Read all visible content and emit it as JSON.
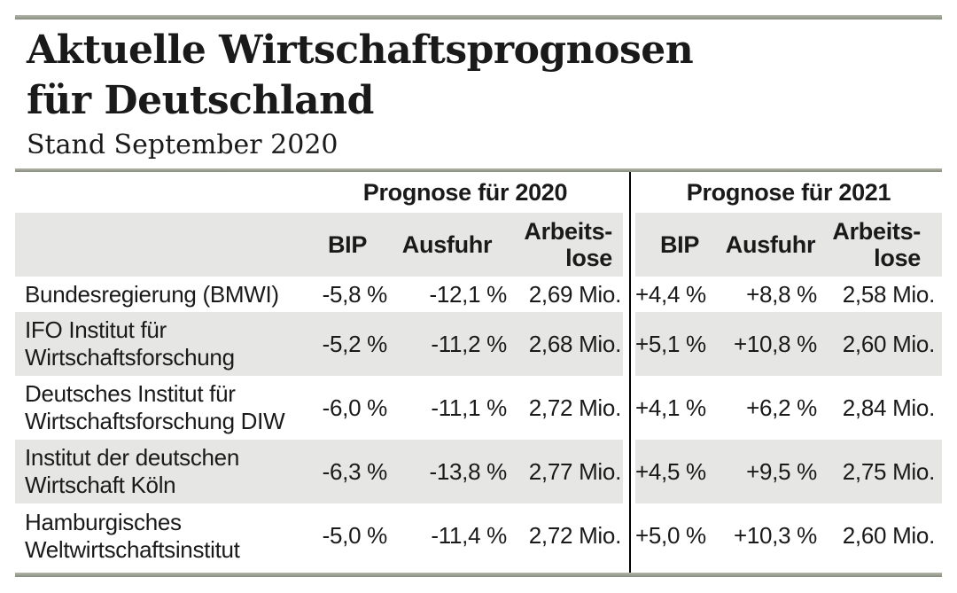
{
  "header": {
    "title_line1": "Aktuelle Wirtschaftsprognosen",
    "title_line2": "für Deutschland",
    "subtitle": "Stand September 2020"
  },
  "table": {
    "group_headers": [
      "Prognose für 2020",
      "Prognose für 2021"
    ],
    "column_headers": {
      "bip": "BIP",
      "ausfuhr": "Ausfuhr",
      "arbeitslose_line1": "Arbeits-",
      "arbeitslose_line2": "lose"
    },
    "rows": [
      {
        "label": "Bundesregierung (BMWI)",
        "p2020": {
          "bip": "-5,8 %",
          "ausfuhr": "-12,1 %",
          "arbeitslose": "2,69 Mio."
        },
        "p2021": {
          "bip": "+4,4 %",
          "ausfuhr": "+8,8 %",
          "arbeitslose": "2,58 Mio."
        }
      },
      {
        "label": "IFO Institut für\nWirtschaftsforschung",
        "p2020": {
          "bip": "-5,2 %",
          "ausfuhr": "-11,2 %",
          "arbeitslose": "2,68 Mio."
        },
        "p2021": {
          "bip": "+5,1 %",
          "ausfuhr": "+10,8 %",
          "arbeitslose": "2,60 Mio."
        }
      },
      {
        "label": "Deutsches Institut für\nWirtschaftsforschung DIW",
        "p2020": {
          "bip": "-6,0 %",
          "ausfuhr": "-11,1 %",
          "arbeitslose": "2,72 Mio."
        },
        "p2021": {
          "bip": "+4,1 %",
          "ausfuhr": "+6,2 %",
          "arbeitslose": "2,84 Mio."
        }
      },
      {
        "label": "Institut der deutschen\nWirtschaft Köln",
        "p2020": {
          "bip": "-6,3 %",
          "ausfuhr": "-13,8 %",
          "arbeitslose": "2,77 Mio."
        },
        "p2021": {
          "bip": "+4,5 %",
          "ausfuhr": "+9,5 %",
          "arbeitslose": "2,75 Mio."
        }
      },
      {
        "label": "Hamburgisches\nWeltwirtschaftsinstitut",
        "p2020": {
          "bip": "-5,0 %",
          "ausfuhr": "-11,4 %",
          "arbeitslose": "2,72 Mio."
        },
        "p2021": {
          "bip": "+5,0 %",
          "ausfuhr": "+10,3 %",
          "arbeitslose": "2,60 Mio."
        }
      }
    ]
  },
  "colors": {
    "rule": "#969c8e",
    "row_stripe": "#e6e6e4",
    "divider": "#000000",
    "text": "#1a1a1a"
  },
  "chart_data": {
    "type": "table",
    "title": "Aktuelle Wirtschaftsprognosen für Deutschland",
    "subtitle": "Stand September 2020",
    "column_groups": [
      "Prognose für 2020",
      "Prognose für 2021"
    ],
    "columns": [
      "BIP",
      "Ausfuhr",
      "Arbeitslose"
    ],
    "units": {
      "bip": "%",
      "ausfuhr": "%",
      "arbeitslose": "Mio."
    },
    "rows": [
      {
        "institution": "Bundesregierung (BMWI)",
        "prognose_2020": {
          "bip_pct": -5.8,
          "ausfuhr_pct": -12.1,
          "arbeitslose_mio": 2.69
        },
        "prognose_2021": {
          "bip_pct": 4.4,
          "ausfuhr_pct": 8.8,
          "arbeitslose_mio": 2.58
        }
      },
      {
        "institution": "IFO Institut für Wirtschaftsforschung",
        "prognose_2020": {
          "bip_pct": -5.2,
          "ausfuhr_pct": -11.2,
          "arbeitslose_mio": 2.68
        },
        "prognose_2021": {
          "bip_pct": 5.1,
          "ausfuhr_pct": 10.8,
          "arbeitslose_mio": 2.6
        }
      },
      {
        "institution": "Deutsches Institut für Wirtschaftsforschung DIW",
        "prognose_2020": {
          "bip_pct": -6.0,
          "ausfuhr_pct": -11.1,
          "arbeitslose_mio": 2.72
        },
        "prognose_2021": {
          "bip_pct": 4.1,
          "ausfuhr_pct": 6.2,
          "arbeitslose_mio": 2.84
        }
      },
      {
        "institution": "Institut der deutschen Wirtschaft Köln",
        "prognose_2020": {
          "bip_pct": -6.3,
          "ausfuhr_pct": -13.8,
          "arbeitslose_mio": 2.77
        },
        "prognose_2021": {
          "bip_pct": 4.5,
          "ausfuhr_pct": 9.5,
          "arbeitslose_mio": 2.75
        }
      },
      {
        "institution": "Hamburgisches Weltwirtschaftsinstitut",
        "prognose_2020": {
          "bip_pct": -5.0,
          "ausfuhr_pct": -11.4,
          "arbeitslose_mio": 2.72
        },
        "prognose_2021": {
          "bip_pct": 5.0,
          "ausfuhr_pct": 10.3,
          "arbeitslose_mio": 2.6
        }
      }
    ]
  }
}
